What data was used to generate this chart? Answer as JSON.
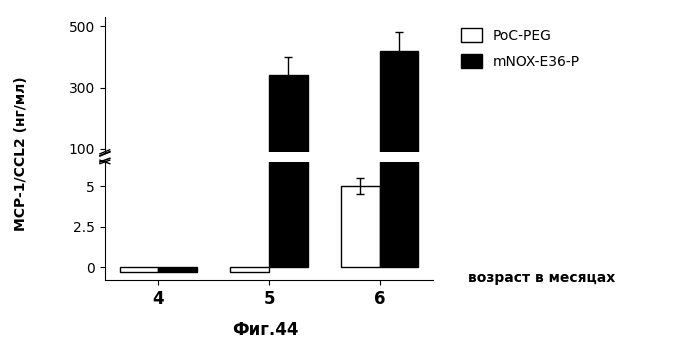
{
  "title": "",
  "xlabel": "",
  "ylabel": "MCP-1/CCL2 (нг/мл)",
  "x_label_text": "возраст в месяцах",
  "caption": "Фиг.44",
  "groups": [
    "4",
    "5",
    "6"
  ],
  "legend_labels": [
    "PoC-PEG",
    "mNOX-E36-P"
  ],
  "bar_colors": [
    "white",
    "black"
  ],
  "bar_edgecolors": [
    "black",
    "black"
  ],
  "poc_peg_values": [
    -0.3,
    -0.3,
    5.0
  ],
  "mnox_values": [
    -0.3,
    340.0,
    420.0
  ],
  "poc_peg_errors": [
    0.1,
    0.2,
    0.5
  ],
  "mnox_errors": [
    0.1,
    60.0,
    60.0
  ],
  "lower_ylim": [
    -0.8,
    6.5
  ],
  "upper_ylim": [
    90,
    530
  ],
  "lower_yticks": [
    0,
    2.5,
    5
  ],
  "upper_yticks": [
    100,
    300,
    500
  ],
  "bar_width": 0.35,
  "background_color": "white"
}
